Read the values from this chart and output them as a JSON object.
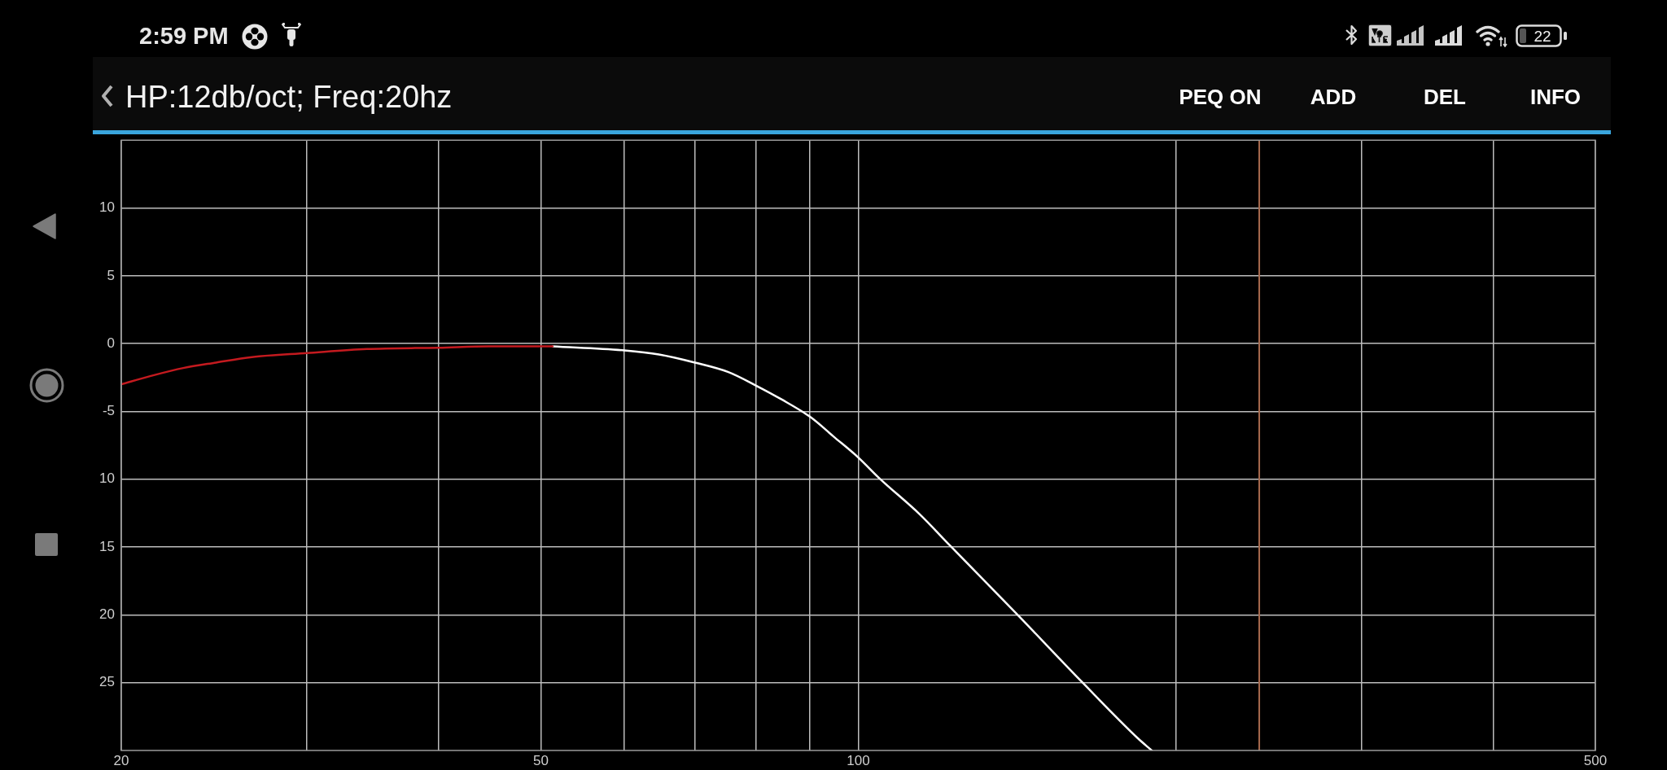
{
  "chart_data": {
    "type": "line",
    "title": "HP:12db/oct; Freq:20hz",
    "series": [
      {
        "color": "#c41a1f",
        "x": [
          20,
          21.3,
          22.9,
          24.6,
          26.6,
          30,
          34.2,
          40,
          44.6,
          50,
          51.3
        ],
        "values": [
          -3.0,
          -2.4,
          -1.8,
          -1.4,
          -1.0,
          -0.7,
          -0.4,
          -0.3,
          -0.2,
          -0.2,
          -0.2
        ]
      },
      {
        "color": "#ffffff",
        "x": [
          51.3,
          60,
          64.7,
          70,
          75.3,
          80,
          84.5,
          90,
          94.9,
          100,
          104.6,
          114.4,
          122.2,
          141.6,
          163.2,
          184.1,
          189.8
        ],
        "values": [
          -0.2,
          -0.5,
          -0.8,
          -1.4,
          -2.1,
          -3.1,
          -4.1,
          -5.4,
          -6.9,
          -8.4,
          -9.9,
          -12.6,
          -14.9,
          -20.0,
          -25.0,
          -29.1,
          -30.0
        ]
      }
    ],
    "log": "x",
    "xlim": [
      20,
      500
    ],
    "xticks": [
      20,
      {
        "value": 30,
        "label": null
      },
      {
        "value": 40,
        "label": null
      },
      50,
      {
        "value": 60,
        "label": null
      },
      {
        "value": 70,
        "label": null
      },
      {
        "value": 80,
        "label": null
      },
      {
        "value": 90,
        "label": null
      },
      100,
      {
        "value": 200,
        "label": null
      },
      {
        "value": 300,
        "label": null
      },
      {
        "value": 400,
        "label": null
      },
      500
    ],
    "ylim": [
      -30,
      15
    ],
    "yticks": [
      {
        "value": -25,
        "label": "25"
      },
      {
        "value": -20,
        "label": "20"
      },
      {
        "value": -15,
        "label": "15"
      },
      {
        "value": -10,
        "label": "10"
      },
      -5,
      0,
      5,
      10
    ],
    "grid": true,
    "ref_lines": [
      {
        "axis": "x",
        "value": 240,
        "color": "#a86a4e"
      }
    ],
    "annotations": [
      "PEQ ON",
      "ADD",
      "DEL",
      "INFO",
      "2:59 PM",
      "22"
    ]
  }
}
